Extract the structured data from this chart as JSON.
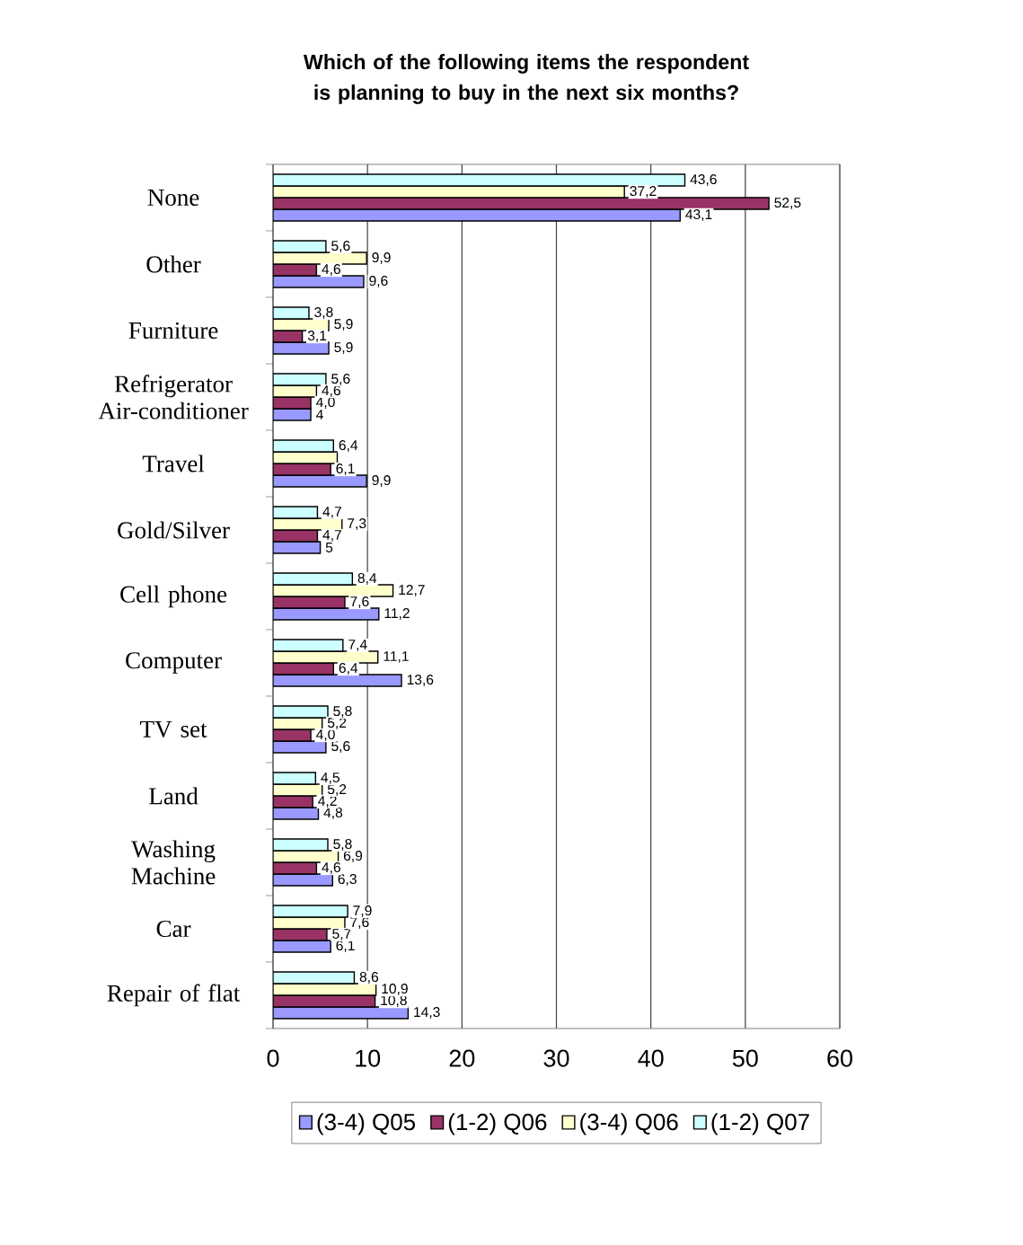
{
  "chart_data": {
    "type": "bar",
    "orientation": "horizontal",
    "title": "Which of the following items the respondent is planning to buy in the next six months?",
    "categories": [
      "None",
      "Other",
      "Furniture",
      "Refrigerator Air-conditioner",
      "Travel",
      "Gold/Silver",
      "Cell phone",
      "Computer",
      "TV set",
      "Land",
      "Washing Machine",
      "Car",
      "Repair of flat"
    ],
    "series": [
      {
        "name": "(3-4) Q05",
        "color": "#9999ff",
        "values": [
          43.1,
          9.6,
          5.9,
          4,
          9.9,
          5,
          11.2,
          13.6,
          5.6,
          4.8,
          6.3,
          6.1,
          14.3
        ],
        "value_labels": [
          "43,1",
          "9,6",
          "5,9",
          "4",
          "9,9",
          "5",
          "11,2",
          "13,6",
          "5,6",
          "4,8",
          "6,3",
          "6,1",
          "14,3"
        ]
      },
      {
        "name": "(1-2) Q06",
        "color": "#993366",
        "values": [
          52.5,
          4.6,
          3.1,
          4.0,
          6.1,
          4.7,
          7.6,
          6.4,
          4.0,
          4.2,
          4.6,
          5.7,
          10.8
        ],
        "value_labels": [
          "52,5",
          "4,6",
          "3,1",
          "4,0",
          "6,1",
          "4,7",
          "7,6",
          "6,4",
          "4,0",
          "4,2",
          "4,6",
          "5,7",
          "10,8"
        ]
      },
      {
        "name": "(3-4) Q06",
        "color": "#ffffcc",
        "values": [
          37.2,
          9.9,
          5.9,
          4.6,
          6.8,
          7.3,
          12.7,
          11.1,
          5.2,
          5.2,
          6.9,
          7.6,
          10.9
        ],
        "value_labels": [
          "37,2",
          "9,9",
          "5,9",
          "4,6",
          null,
          "7,3",
          "12,7",
          "11,1",
          "5,2",
          "5,2",
          "6,9",
          "7,6",
          "10,9"
        ]
      },
      {
        "name": "(1-2) Q07",
        "color": "#ccffff",
        "values": [
          43.6,
          5.6,
          3.8,
          5.6,
          6.4,
          4.7,
          8.4,
          7.4,
          5.8,
          4.5,
          5.8,
          7.9,
          8.6
        ],
        "value_labels": [
          "43,6",
          "5,6",
          "3,8",
          "5,6",
          "6,4",
          "4,7",
          "8,4",
          "7,4",
          "5,8",
          "4,5",
          "5,8",
          "7,9",
          "8,6"
        ]
      }
    ],
    "xlim": [
      0,
      60
    ],
    "xticks": [
      0,
      10,
      20,
      30,
      40,
      50,
      60
    ],
    "grid": "x",
    "legend": "bottom"
  }
}
